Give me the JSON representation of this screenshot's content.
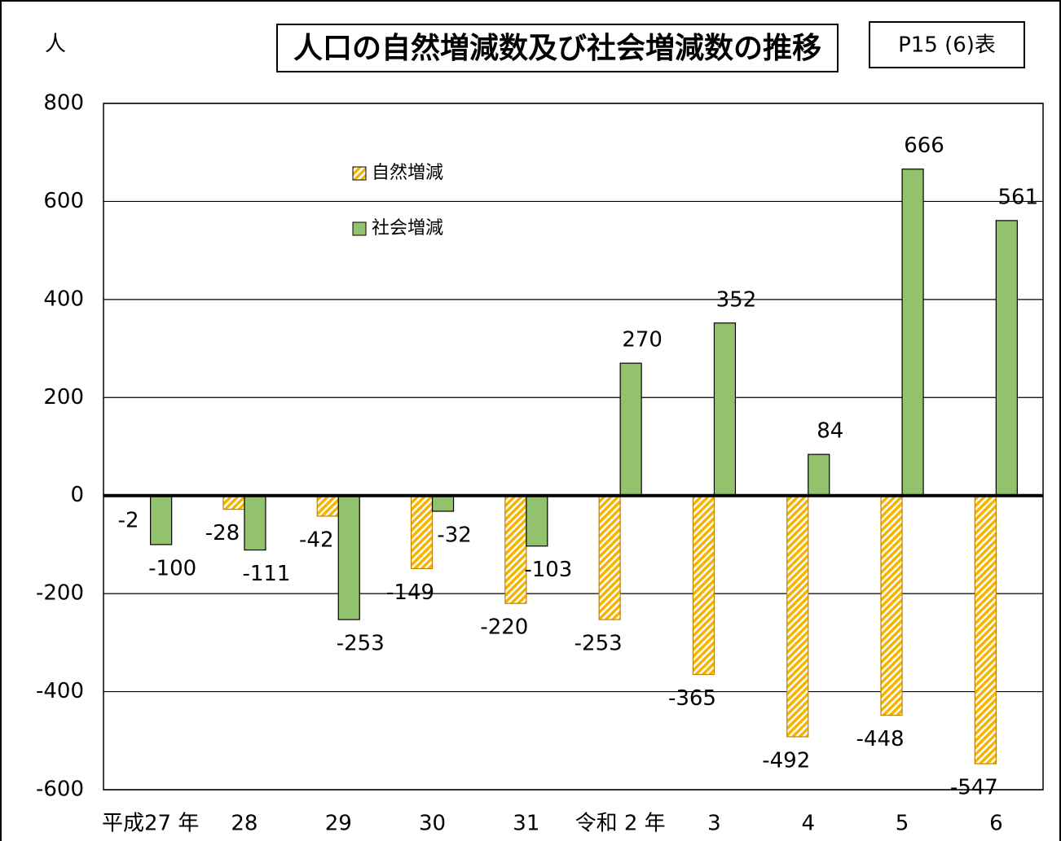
{
  "chart_data": {
    "type": "bar",
    "title": "人口の自然増減数及び社会増減数の推移",
    "table_ref": "P15 (6)表",
    "ylabel": "人",
    "categories": [
      "平成27 年",
      "28",
      "29",
      "30",
      "31",
      "令和 2 年",
      "3",
      "4",
      "5",
      "6"
    ],
    "series": [
      {
        "name": "自然増減",
        "color": "#f5b400",
        "pattern": "hatched",
        "values": [
          -2,
          -28,
          -42,
          -149,
          -220,
          -253,
          -365,
          -492,
          -448,
          -547
        ]
      },
      {
        "name": "社会増減",
        "color": "#92c36c",
        "values": [
          -100,
          -111,
          -253,
          -32,
          -103,
          270,
          352,
          84,
          666,
          561
        ]
      }
    ],
    "ylim": [
      -600,
      800
    ],
    "yticks": [
      -600,
      -400,
      -200,
      0,
      200,
      400,
      600,
      800
    ],
    "grid": true
  }
}
